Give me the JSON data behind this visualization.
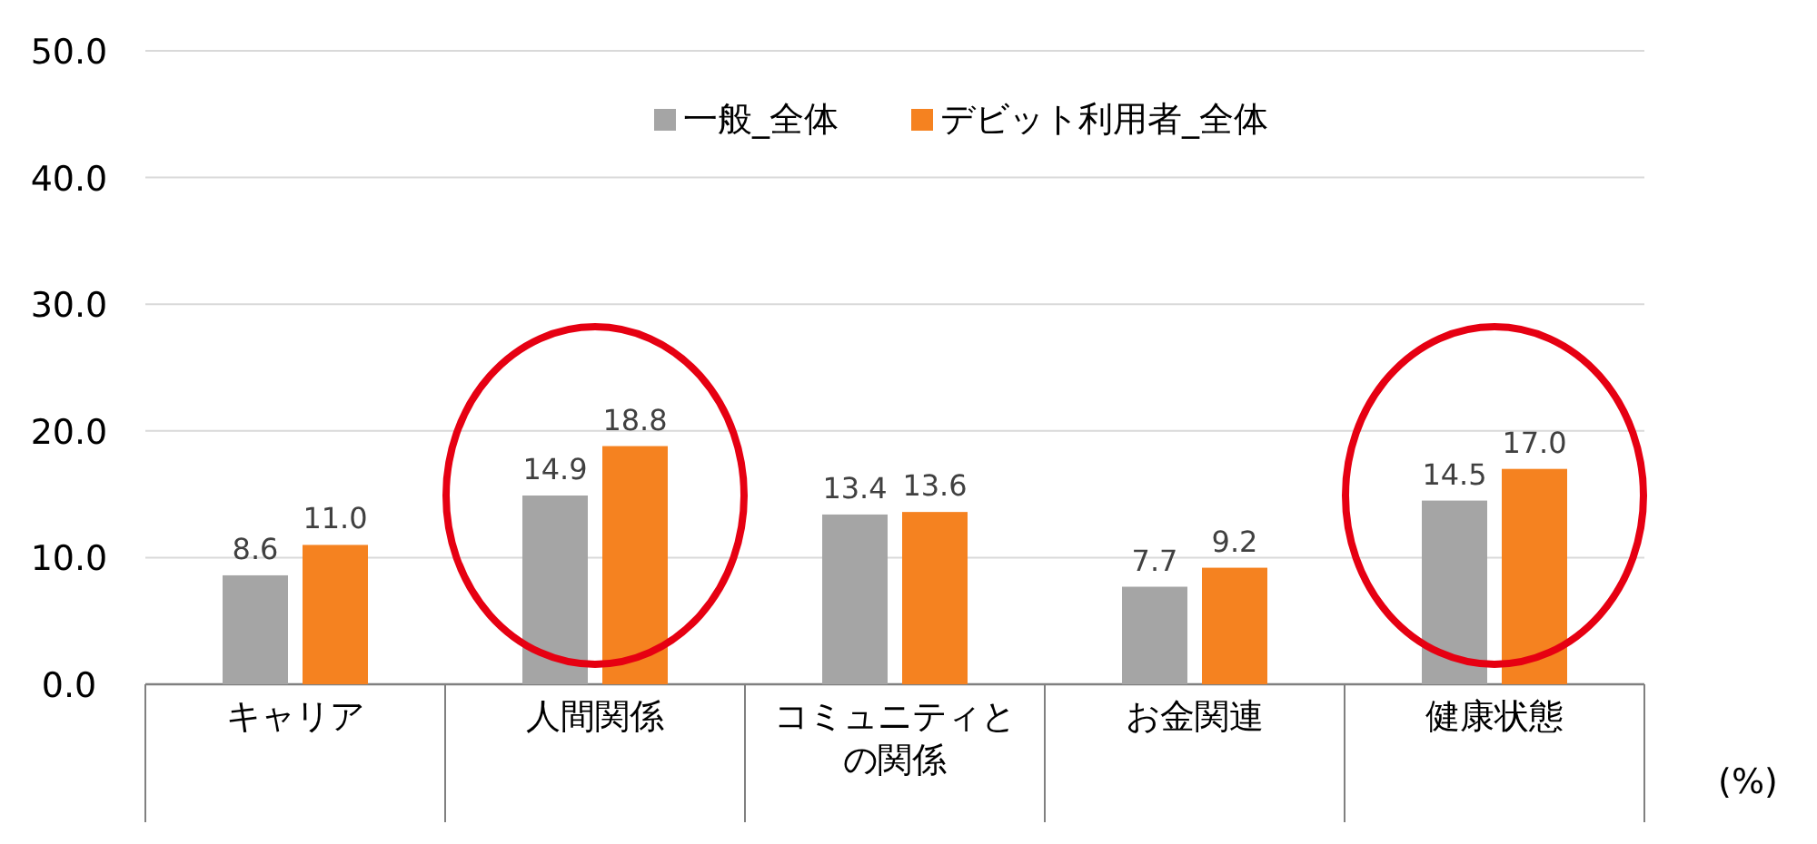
{
  "chart_data": {
    "type": "bar",
    "categories": [
      "キャリア",
      "人間関係",
      "コミュニティとの関係",
      "お金関連",
      "健康状態"
    ],
    "series": [
      {
        "name": "一般_全体",
        "color": "#a5a5a5",
        "values": [
          8.6,
          14.9,
          13.4,
          7.7,
          14.5
        ],
        "value_labels": [
          "8.6",
          "14.9",
          "13.4",
          "7.7",
          "14.5"
        ]
      },
      {
        "name": "デビット利用者_全体",
        "color": "#f58220",
        "values": [
          11.0,
          18.8,
          13.6,
          9.2,
          17.0
        ],
        "value_labels": [
          "11.0",
          "18.8",
          "13.6",
          "9.2",
          "17.0"
        ]
      }
    ],
    "ylim": [
      0,
      50
    ],
    "yticks": [
      {
        "value": 0,
        "label": "0.0"
      },
      {
        "value": 10,
        "label": "10.0"
      },
      {
        "value": 20,
        "label": "20.0"
      },
      {
        "value": 30,
        "label": "30.0"
      },
      {
        "value": 40,
        "label": "40.0"
      },
      {
        "value": 50,
        "label": "50.0"
      }
    ],
    "grid": "y",
    "legend": "top",
    "annotations": [
      "(%)"
    ]
  }
}
